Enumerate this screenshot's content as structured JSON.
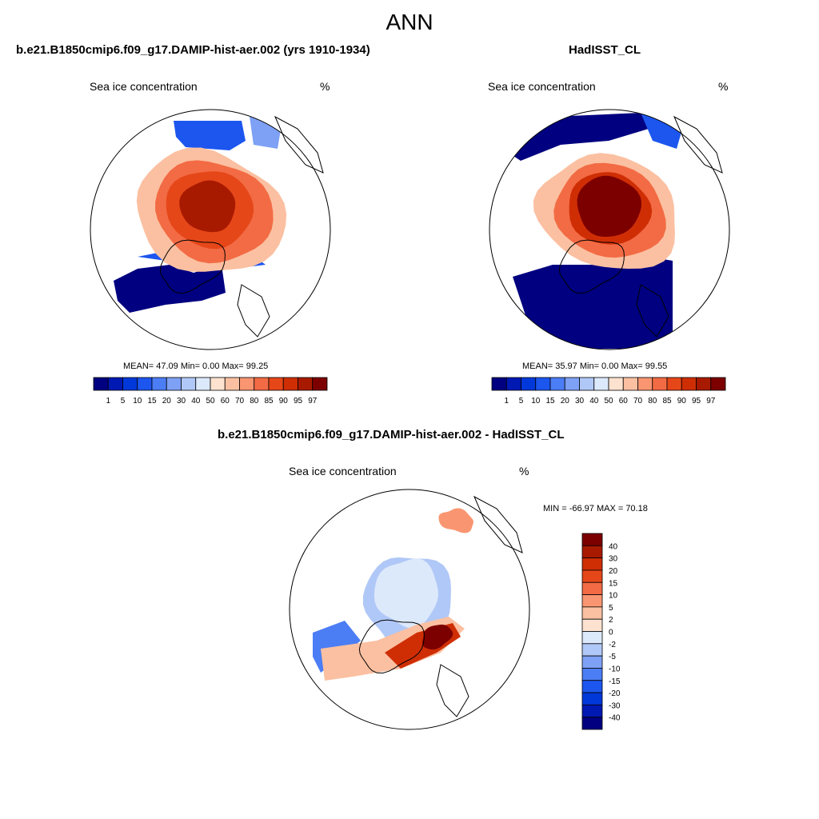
{
  "main_title": "ANN",
  "colors": {
    "abs_palette": [
      "#000080",
      "#0019b3",
      "#0038d9",
      "#1c56ef",
      "#4b7df5",
      "#7ea1f5",
      "#b0c8f7",
      "#dce9fb",
      "#fde2d0",
      "#fbc0a1",
      "#f99671",
      "#f26b44",
      "#e64719",
      "#cf2e05",
      "#a81a00",
      "#7d0000"
    ],
    "diff_palette": [
      "#000080",
      "#0019b3",
      "#0038d9",
      "#1c56ef",
      "#4b7df5",
      "#7ea1f5",
      "#b0c8f7",
      "#dce9fb",
      "#fde2d0",
      "#fbc0a1",
      "#f99671",
      "#f26b44",
      "#e64719",
      "#cf2e05",
      "#a81a00",
      "#7d0000"
    ],
    "land": "#ffffff"
  },
  "chart_data": [
    {
      "type": "heatmap",
      "title": "b.e21.B1850cmip6.f09_g17.DAMIP-hist-aer.002 (yrs 1910-1934)",
      "subtitle_left": "Sea ice concentration",
      "subtitle_right": "%",
      "stats_text": "MEAN=  47.09  Min=    0.00  Max=  99.25",
      "mean": 47.09,
      "min": 0.0,
      "max": 99.25,
      "colorbar_ticks": [
        "1",
        "5",
        "10",
        "15",
        "20",
        "30",
        "40",
        "50",
        "60",
        "70",
        "80",
        "85",
        "90",
        "95",
        "97"
      ],
      "projection": "north polar stereographic"
    },
    {
      "type": "heatmap",
      "title": "HadISST_CL",
      "subtitle_left": "Sea ice concentration",
      "subtitle_right": "%",
      "stats_text": "MEAN=  35.97  Min=    0.00  Max=  99.55",
      "mean": 35.97,
      "min": 0.0,
      "max": 99.55,
      "colorbar_ticks": [
        "1",
        "5",
        "10",
        "15",
        "20",
        "30",
        "40",
        "50",
        "60",
        "70",
        "80",
        "85",
        "90",
        "95",
        "97"
      ],
      "projection": "north polar stereographic"
    },
    {
      "type": "heatmap",
      "title": "b.e21.B1850cmip6.f09_g17.DAMIP-hist-aer.002 - HadISST_CL",
      "subtitle_left": "Sea ice concentration",
      "subtitle_right": "%",
      "stats_text": "MIN = -66.97 MAX =  70.18",
      "min": -66.97,
      "max": 70.18,
      "colorbar_ticks": [
        "40",
        "30",
        "20",
        "15",
        "10",
        "5",
        "2",
        "0",
        "-2",
        "-5",
        "-10",
        "-15",
        "-20",
        "-30",
        "-40"
      ],
      "projection": "north polar stereographic"
    }
  ]
}
